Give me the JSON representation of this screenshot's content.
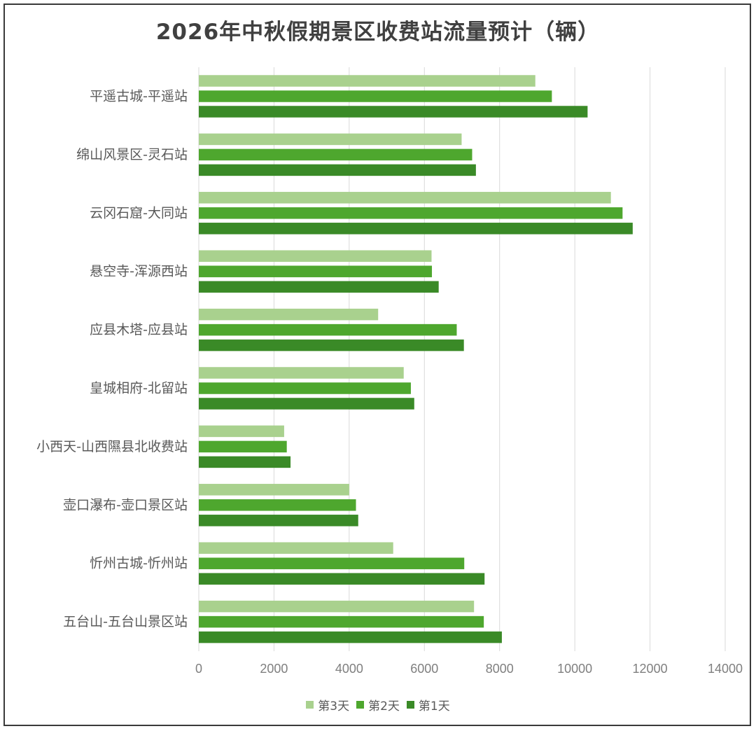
{
  "chart_data": {
    "type": "bar",
    "orientation": "horizontal",
    "title": "2026年中秋假期景区收费站流量预计（辆）",
    "categories": [
      "平遥古城-平遥站",
      "绵山风景区-灵石站",
      "云冈石窟-大同站",
      "悬空寺-浑源西站",
      "应县木塔-应县站",
      "皇城相府-北留站",
      "小西天-山西隰县北收费站",
      "壶口瀑布-壶口景区站",
      "忻州古城-忻州站",
      "五台山-五台山景区站"
    ],
    "series": [
      {
        "name": "第3天",
        "color": "#a9d18e",
        "values": [
          8950,
          6990,
          10960,
          6190,
          4770,
          5450,
          2270,
          4000,
          5170,
          7320
        ]
      },
      {
        "name": "第2天",
        "color": "#4ea72e",
        "values": [
          9390,
          7270,
          11270,
          6200,
          6860,
          5640,
          2340,
          4180,
          7060,
          7580
        ]
      },
      {
        "name": "第1天",
        "color": "#3a8a27",
        "values": [
          10340,
          7370,
          11540,
          6380,
          7050,
          5730,
          2440,
          4240,
          7600,
          8060
        ]
      }
    ],
    "xlim": [
      0,
      14000
    ],
    "xticks": [
      "0",
      "2000",
      "4000",
      "6000",
      "8000",
      "10000",
      "12000",
      "14000"
    ],
    "grid": true,
    "legend_position": "bottom"
  }
}
